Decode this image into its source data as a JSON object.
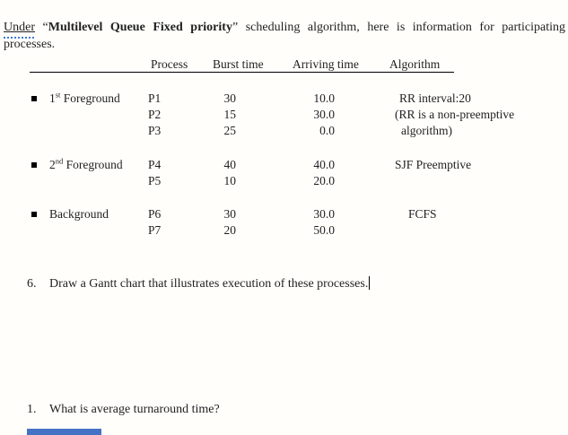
{
  "intro": {
    "word_under": "Under",
    "after_under": " “",
    "bold_text": "Multilevel Queue Fixed priority",
    "after_bold": "” scheduling algorithm, here is information for participating processes."
  },
  "table": {
    "headers": [
      "Process",
      "Burst time",
      "Arriving time",
      "Algorithm"
    ],
    "groups": [
      {
        "label_num": "1",
        "label_sup": "st",
        "label_rest": " Foreground",
        "rows": [
          {
            "process": "P1",
            "burst": "30",
            "arriving": "10.0",
            "algorithm": "RR interval:20"
          },
          {
            "process": "P2",
            "burst": "15",
            "arriving": "30.0",
            "algorithm": "(RR is a non-preemptive"
          },
          {
            "process": "P3",
            "burst": "25",
            "arriving": "0.0",
            "algorithm": "algorithm)"
          }
        ]
      },
      {
        "label_num": "2",
        "label_sup": "nd",
        "label_rest": " Foreground",
        "rows": [
          {
            "process": "P4",
            "burst": "40",
            "arriving": "40.0",
            "algorithm": "SJF Preemptive"
          },
          {
            "process": "P5",
            "burst": "10",
            "arriving": "20.0",
            "algorithm": ""
          }
        ]
      },
      {
        "label_num": "Background",
        "label_sup": "",
        "label_rest": "",
        "rows": [
          {
            "process": "P6",
            "burst": "30",
            "arriving": "30.0",
            "algorithm": "FCFS"
          },
          {
            "process": "P7",
            "burst": "20",
            "arriving": "50.0",
            "algorithm": ""
          }
        ]
      }
    ]
  },
  "questions": {
    "q6": {
      "number": "6.",
      "text": "Draw a Gantt chart that illustrates execution of these processes."
    },
    "q1": {
      "number": "1.",
      "text": "What is average turnaround time?"
    }
  },
  "icons": {
    "list_bullet": "black-square-bullet",
    "text_cursor": "vertical-bar-caret"
  },
  "colors": {
    "text": "#1f1f1f",
    "background": "#fffefb",
    "grammar_squiggle": "#3a7ad9",
    "bottom_bar_blue": "#4472c4"
  }
}
